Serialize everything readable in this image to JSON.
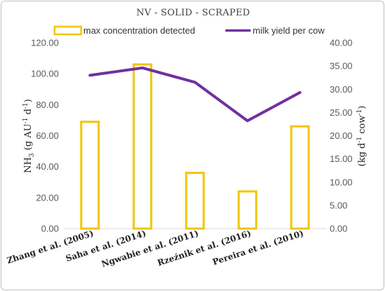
{
  "chart_data": {
    "type": "bar",
    "title": "NV - SOLID - SCRAPED",
    "categories": [
      "Zhang et al. (2005)",
      "Saha et al. (2014)",
      "Ngwabie et al. (2011)",
      "Rzeźnik et al. (2016)",
      "Pereira et al. (2010)"
    ],
    "series": [
      {
        "name": "max concentration detected",
        "type": "bar",
        "axis": "left",
        "color": "#f2c500",
        "values": [
          69,
          106,
          36,
          24,
          66
        ]
      },
      {
        "name": "milk yield per cow",
        "type": "line",
        "axis": "right",
        "color": "#7030a0",
        "values": [
          33.0,
          34.6,
          31.5,
          23.2,
          29.3
        ]
      }
    ],
    "ylabel_left": {
      "base": "NH",
      "sub": "3",
      "mid": " (g AU",
      "sup1": "-1",
      "mid2": " d",
      "sup2": "-1",
      "end": ")"
    },
    "ylabel_right": {
      "base": "(kg d",
      "sup1": "-1",
      "mid": " cow",
      "sup2": "-1",
      "end": ")"
    },
    "ylim_left": [
      0,
      120
    ],
    "ylim_right": [
      0,
      40
    ],
    "yticks_left": [
      "0.00",
      "20.00",
      "40.00",
      "60.00",
      "80.00",
      "100.00",
      "120.00"
    ],
    "yticks_right": [
      "0.00",
      "5.00",
      "10.00",
      "15.00",
      "20.00",
      "25.00",
      "30.00",
      "35.00",
      "40.00"
    ],
    "legend_position": "top",
    "grid": false
  }
}
